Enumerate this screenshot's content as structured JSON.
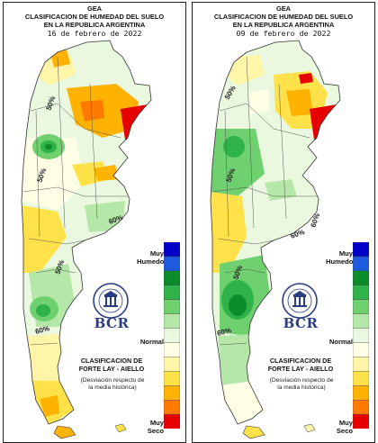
{
  "panels": [
    {
      "org": "GEA",
      "title_line1": "CLASIFICACION DE HUMEDAD DEL SUELO",
      "title_line2": "EN LA REPUBLICA ARGENTINA",
      "date": "16 de febrero de 2022",
      "contour_labels": [
        "50%",
        "50%",
        "60%",
        "50%",
        "60%"
      ]
    },
    {
      "org": "GEA",
      "title_line1": "CLASIFICACION DE HUMEDAD DEL SUELO",
      "title_line2": "EN LA REPUBLICA ARGENTINA",
      "date": "09 de febrero de 2022",
      "contour_labels": [
        "50%",
        "50%",
        "60%",
        "60%",
        "60%",
        "50%"
      ]
    }
  ],
  "legend": {
    "muy_humedo": [
      "Muy",
      "Humedo"
    ],
    "normal": "Normal",
    "muy_seco": [
      "Muy",
      "Seco"
    ],
    "colors": [
      "#0000c8",
      "#1e5adc",
      "#0a8c2a",
      "#2fb24a",
      "#6ed06e",
      "#b5e8a8",
      "#eaf8e0",
      "#ffffe6",
      "#fff5a8",
      "#ffe14a",
      "#ffb300",
      "#ff7a00",
      "#e60000"
    ]
  },
  "logo": {
    "name": "BCR"
  },
  "method": {
    "line1": "CLASIFICACION DE",
    "line2": "FORTE LAY - AIELLO",
    "note1": "(Desviación respecto de",
    "note2": "la media histórica)"
  }
}
